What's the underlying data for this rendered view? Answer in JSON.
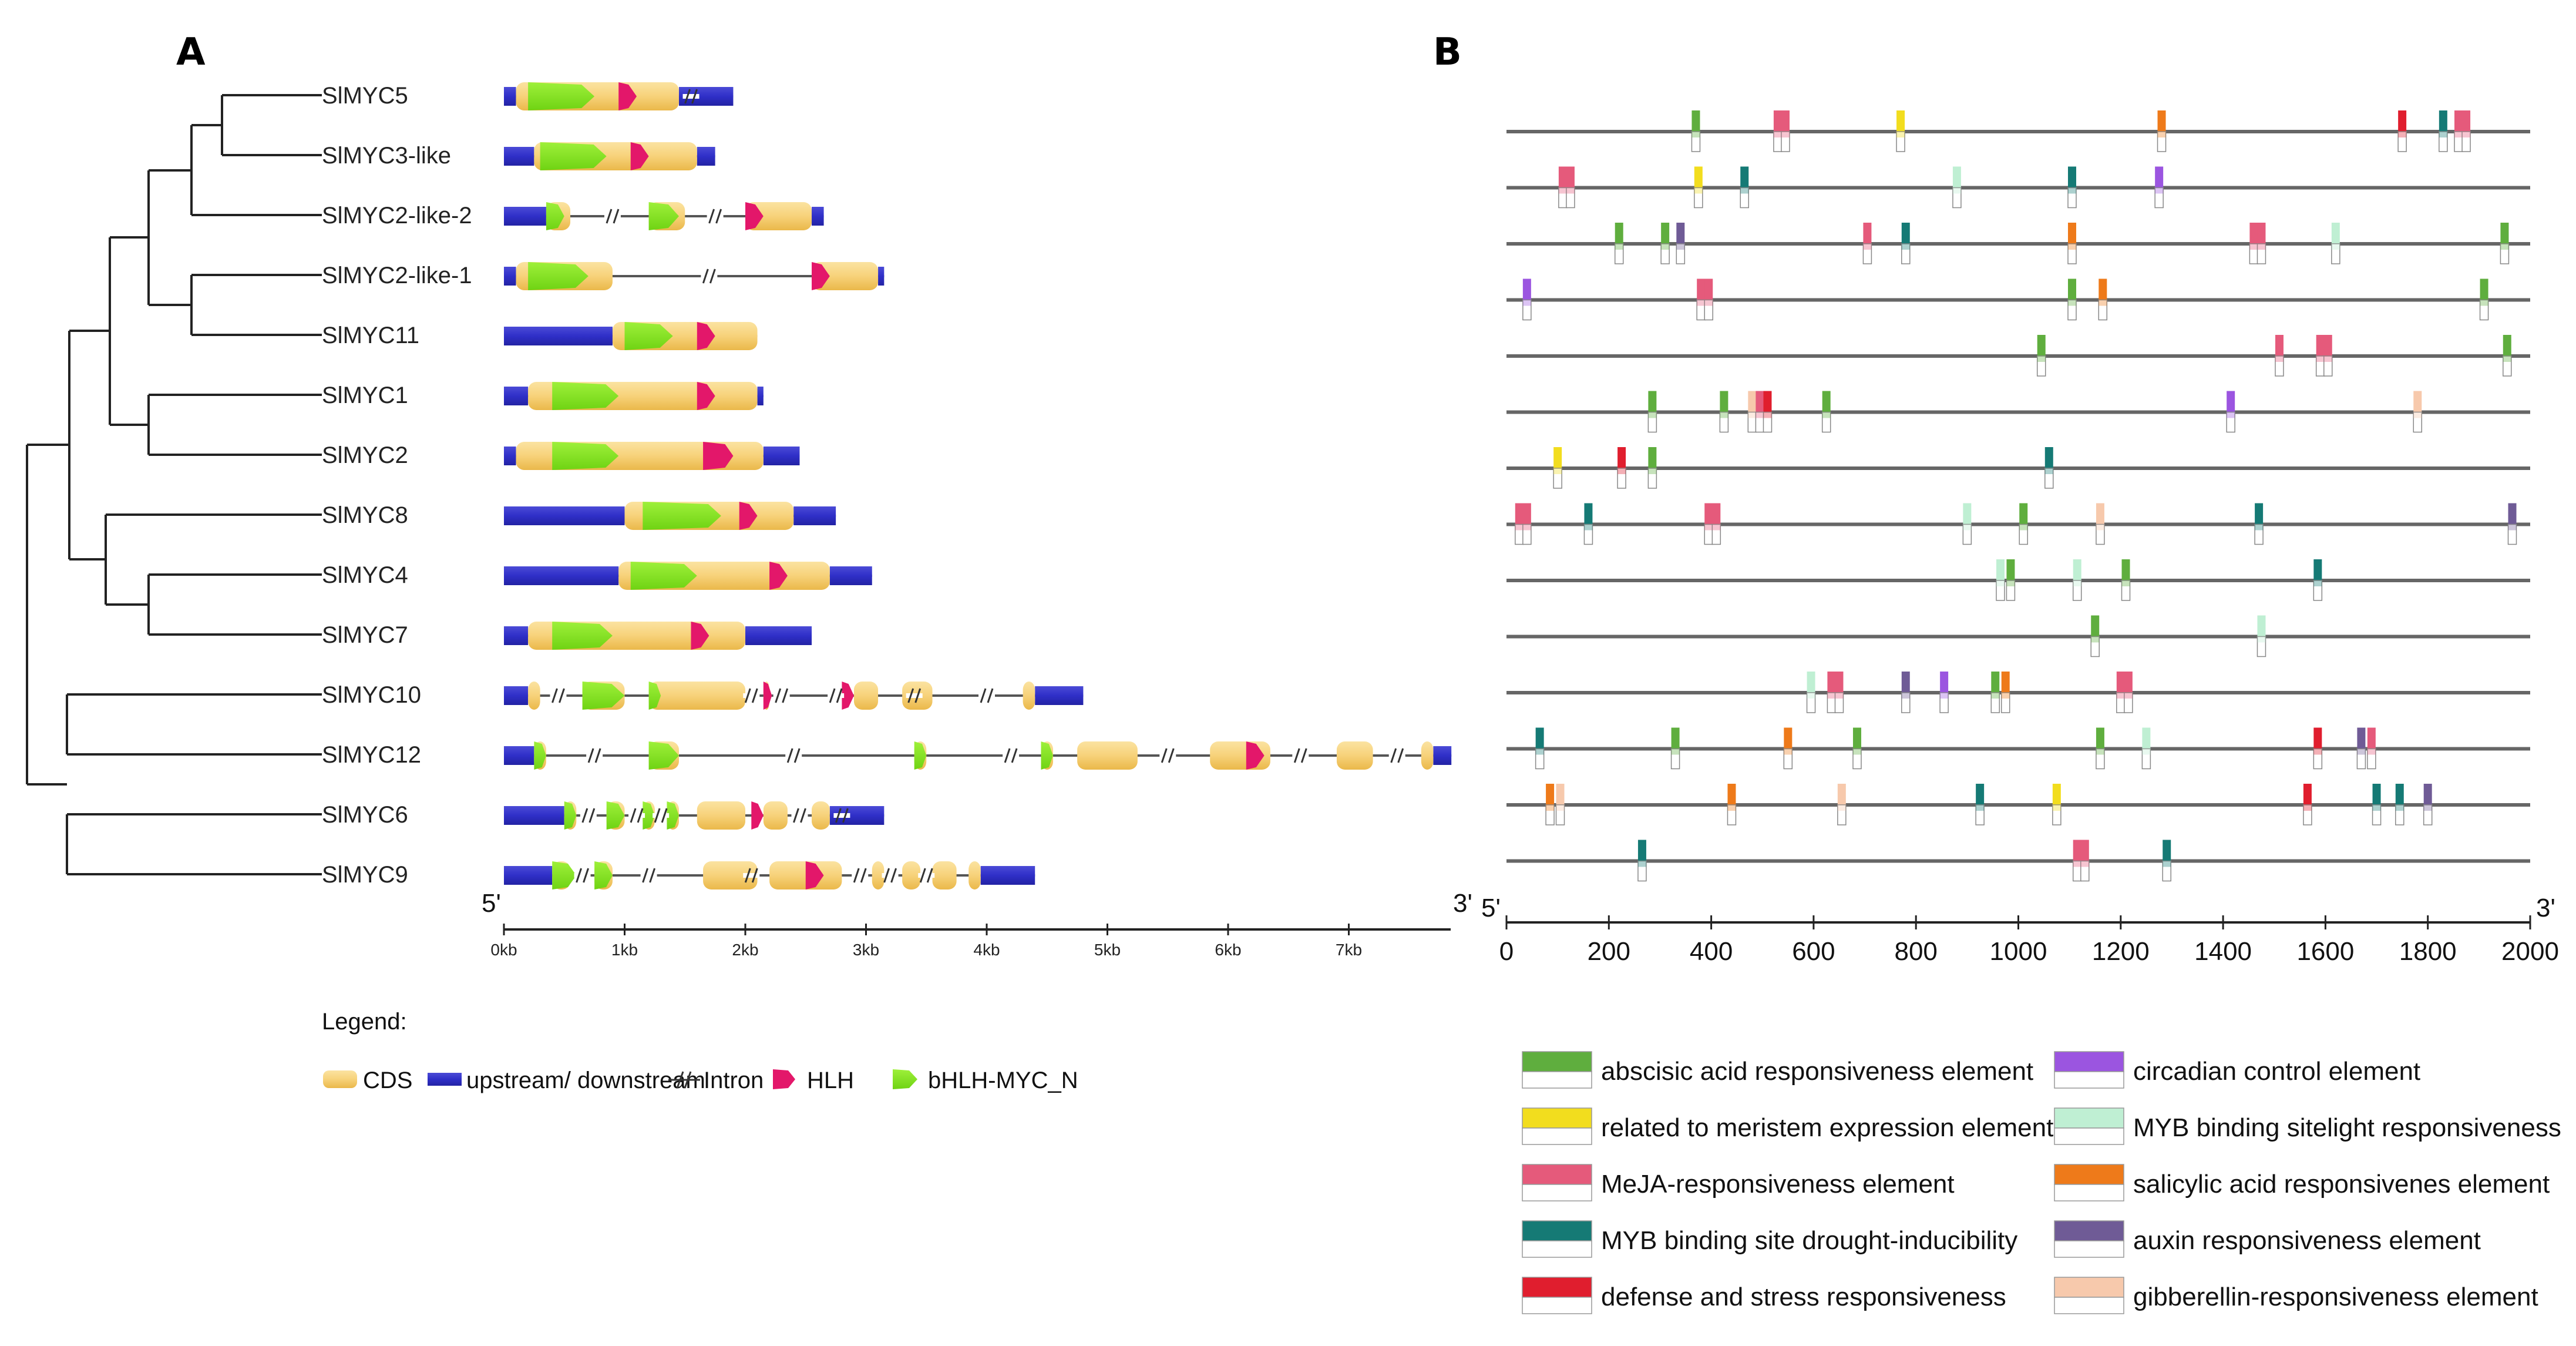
{
  "panel_a": {
    "label": "A",
    "genes": [
      "SlMYC5",
      "SlMYC3-like",
      "SlMYC2-like-2",
      "SlMYC2-like-1",
      "SlMYC11",
      "SlMYC1",
      "SlMYC2",
      "SlMYC8",
      "SlMYC4",
      "SlMYC7",
      "SlMYC10",
      "SlMYC12",
      "SlMYC6",
      "SlMYC9"
    ],
    "axis": {
      "five_prime": "5'",
      "three_prime": "3'",
      "ticks": [
        "0kb",
        "1kb",
        "2kb",
        "3kb",
        "4kb",
        "5kb",
        "6kb",
        "7kb"
      ],
      "tick_values_kb": [
        0,
        1,
        2,
        3,
        4,
        5,
        6,
        7
      ],
      "max_kb": 7.85
    },
    "gene_structures": [
      {
        "gene": "SlMYC5",
        "total_kb": 1.9,
        "cds": [
          [
            0.1,
            1.45
          ]
        ],
        "introns_kb": [
          1.55
        ],
        "bhlh_myc_n": [
          [
            0.2,
            0.75
          ]
        ],
        "hlh": [
          [
            0.95,
            1.1
          ]
        ]
      },
      {
        "gene": "SlMYC3-like",
        "total_kb": 1.75,
        "cds": [
          [
            0.25,
            1.6
          ]
        ],
        "introns_kb": [],
        "bhlh_myc_n": [
          [
            0.3,
            0.85
          ]
        ],
        "hlh": [
          [
            1.05,
            1.2
          ]
        ]
      },
      {
        "gene": "SlMYC2-like-2",
        "total_kb": 2.65,
        "cds": [
          [
            0.35,
            0.55
          ],
          [
            1.2,
            1.5
          ],
          [
            2.0,
            2.55
          ]
        ],
        "introns_kb": [
          0.9,
          1.75
        ],
        "bhlh_myc_n": [
          [
            0.35,
            0.5
          ],
          [
            1.2,
            1.45
          ]
        ],
        "hlh": [
          [
            2.0,
            2.15
          ]
        ]
      },
      {
        "gene": "SlMYC2-like-1",
        "total_kb": 3.15,
        "cds": [
          [
            0.1,
            0.9
          ],
          [
            2.55,
            3.1
          ]
        ],
        "introns_kb": [
          1.7
        ],
        "bhlh_myc_n": [
          [
            0.2,
            0.7
          ]
        ],
        "hlh": [
          [
            2.55,
            2.7
          ]
        ]
      },
      {
        "gene": "SlMYC11",
        "total_kb": 2.1,
        "cds": [
          [
            0.9,
            2.1
          ]
        ],
        "introns_kb": [],
        "bhlh_myc_n": [
          [
            1.0,
            1.4
          ]
        ],
        "hlh": [
          [
            1.6,
            1.75
          ]
        ]
      },
      {
        "gene": "SlMYC1",
        "total_kb": 2.15,
        "cds": [
          [
            0.2,
            2.1
          ]
        ],
        "introns_kb": [],
        "bhlh_myc_n": [
          [
            0.4,
            0.95
          ]
        ],
        "hlh": [
          [
            1.6,
            1.75
          ]
        ]
      },
      {
        "gene": "SlMYC2",
        "total_kb": 2.45,
        "cds": [
          [
            0.1,
            2.15
          ]
        ],
        "introns_kb": [],
        "bhlh_myc_n": [
          [
            0.4,
            0.95
          ]
        ],
        "hlh": [
          [
            1.65,
            1.9
          ]
        ]
      },
      {
        "gene": "SlMYC8",
        "total_kb": 2.75,
        "cds": [
          [
            1.0,
            2.4
          ]
        ],
        "introns_kb": [],
        "bhlh_myc_n": [
          [
            1.15,
            1.8
          ]
        ],
        "hlh": [
          [
            1.95,
            2.1
          ]
        ]
      },
      {
        "gene": "SlMYC4",
        "total_kb": 3.05,
        "cds": [
          [
            0.95,
            2.7
          ]
        ],
        "introns_kb": [],
        "bhlh_myc_n": [
          [
            1.05,
            1.6
          ]
        ],
        "hlh": [
          [
            2.2,
            2.35
          ]
        ]
      },
      {
        "gene": "SlMYC7",
        "total_kb": 2.55,
        "cds": [
          [
            0.2,
            2.0
          ]
        ],
        "introns_kb": [],
        "bhlh_myc_n": [
          [
            0.4,
            0.9
          ]
        ],
        "hlh": [
          [
            1.55,
            1.7
          ]
        ]
      },
      {
        "gene": "SlMYC10",
        "total_kb": 4.8,
        "cds": [
          [
            0.2,
            0.3
          ],
          [
            0.65,
            1.0
          ],
          [
            1.2,
            2.0
          ],
          [
            2.15,
            2.2
          ],
          [
            2.9,
            3.1
          ],
          [
            3.3,
            3.55
          ],
          [
            4.3,
            4.4
          ]
        ],
        "introns_kb": [
          0.45,
          2.05,
          2.3,
          2.75,
          3.4,
          4.0
        ],
        "bhlh_myc_n": [
          [
            0.65,
            1.0
          ],
          [
            1.2,
            1.3
          ]
        ],
        "hlh": [
          [
            2.15,
            2.22
          ],
          [
            2.8,
            2.9
          ]
        ]
      },
      {
        "gene": "SlMYC12",
        "total_kb": 7.85,
        "cds": [
          [
            0.25,
            0.35
          ],
          [
            1.2,
            1.45
          ],
          [
            3.4,
            3.5
          ],
          [
            4.45,
            4.55
          ],
          [
            4.75,
            5.25
          ],
          [
            5.85,
            6.35
          ],
          [
            6.9,
            7.2
          ],
          [
            7.6,
            7.7
          ]
        ],
        "introns_kb": [
          0.75,
          2.4,
          4.2,
          5.5,
          6.6,
          7.4
        ],
        "bhlh_myc_n": [
          [
            0.25,
            0.35
          ],
          [
            1.2,
            1.45
          ],
          [
            3.4,
            3.5
          ],
          [
            4.45,
            4.55
          ]
        ],
        "hlh": [
          [
            6.15,
            6.3
          ]
        ]
      },
      {
        "gene": "SlMYC6",
        "total_kb": 3.15,
        "cds": [
          [
            0.5,
            0.6
          ],
          [
            0.85,
            1.0
          ],
          [
            1.15,
            1.25
          ],
          [
            1.35,
            1.45
          ],
          [
            1.6,
            2.0
          ],
          [
            2.15,
            2.35
          ],
          [
            2.55,
            2.7
          ]
        ],
        "introns_kb": [
          0.7,
          1.1,
          1.3,
          2.45,
          2.8
        ],
        "bhlh_myc_n": [
          [
            0.5,
            0.6
          ],
          [
            0.85,
            1.0
          ],
          [
            1.15,
            1.25
          ],
          [
            1.35,
            1.45
          ]
        ],
        "hlh": [
          [
            2.05,
            2.15
          ]
        ]
      },
      {
        "gene": "SlMYC9",
        "total_kb": 4.4,
        "cds": [
          [
            0.4,
            0.55
          ],
          [
            0.75,
            0.9
          ],
          [
            1.65,
            2.1
          ],
          [
            2.2,
            2.8
          ],
          [
            3.05,
            3.15
          ],
          [
            3.3,
            3.45
          ],
          [
            3.55,
            3.75
          ],
          [
            3.85,
            3.95
          ]
        ],
        "introns_kb": [
          0.65,
          1.2,
          2.05,
          2.95,
          3.2,
          3.5
        ],
        "bhlh_myc_n": [
          [
            0.4,
            0.6
          ],
          [
            0.75,
            0.9
          ]
        ],
        "hlh": [
          [
            2.5,
            2.65
          ]
        ]
      }
    ],
    "legend": {
      "title": "Legend:",
      "cds": "CDS",
      "updown": "upstream/ downstream",
      "intron": "Intron",
      "hlh": "HLH",
      "bhlh": "bHLH-MYC_N"
    }
  },
  "panel_b": {
    "label": "B",
    "axis": {
      "five_prime": "5'",
      "three_prime": "3'",
      "ticks": [
        "0",
        "200",
        "400",
        "600",
        "800",
        "1000",
        "1200",
        "1400",
        "1600",
        "1800",
        "2000"
      ],
      "tick_values": [
        0,
        200,
        400,
        600,
        800,
        1000,
        1200,
        1400,
        1600,
        1800,
        2000
      ],
      "max": 2000
    },
    "element_types": {
      "aba": {
        "label": "abscisic acid responsiveness element",
        "color": "#5fae3e"
      },
      "mer": {
        "label": "related to meristem expression element",
        "color": "#f2dd1e"
      },
      "meja": {
        "label": "MeJA-responsiveness element",
        "color": "#e55a7b"
      },
      "myb_drought": {
        "label": "MYB binding site drought-inducibility",
        "color": "#157a75"
      },
      "defense": {
        "label": "defense and stress responsiveness",
        "color": "#e01e2e"
      },
      "circ": {
        "label": "circadian control element",
        "color": "#9b55e0"
      },
      "myb_light": {
        "label": "MYB binding sitelight responsiveness",
        "color": "#bfefd3"
      },
      "sal": {
        "label": "salicylic acid responsivenes element",
        "color": "#ee7a1a"
      },
      "aux": {
        "label": "auxin responsiveness element",
        "color": "#6f5b96"
      },
      "gib": {
        "label": "gibberellin-responsiveness element",
        "color": "#f7c9ac"
      }
    },
    "legend_order_left": [
      "aba",
      "mer",
      "meja",
      "myb_drought",
      "defense"
    ],
    "legend_order_right": [
      "circ",
      "myb_light",
      "sal",
      "aux",
      "gib"
    ],
    "rows": [
      [
        {
          "pos": 370,
          "type": "aba"
        },
        {
          "pos": 530,
          "type": "meja"
        },
        {
          "pos": 545,
          "type": "meja"
        },
        {
          "pos": 770,
          "type": "mer"
        },
        {
          "pos": 1280,
          "type": "sal"
        },
        {
          "pos": 1750,
          "type": "defense"
        },
        {
          "pos": 1830,
          "type": "myb_drought"
        },
        {
          "pos": 1860,
          "type": "meja"
        },
        {
          "pos": 1875,
          "type": "meja"
        }
      ],
      [
        {
          "pos": 110,
          "type": "meja"
        },
        {
          "pos": 125,
          "type": "meja"
        },
        {
          "pos": 375,
          "type": "mer"
        },
        {
          "pos": 465,
          "type": "myb_drought"
        },
        {
          "pos": 880,
          "type": "myb_light"
        },
        {
          "pos": 1105,
          "type": "myb_drought"
        },
        {
          "pos": 1275,
          "type": "circ"
        }
      ],
      [
        {
          "pos": 220,
          "type": "aba"
        },
        {
          "pos": 310,
          "type": "aba"
        },
        {
          "pos": 340,
          "type": "aux"
        },
        {
          "pos": 705,
          "type": "meja"
        },
        {
          "pos": 780,
          "type": "myb_drought"
        },
        {
          "pos": 1105,
          "type": "sal"
        },
        {
          "pos": 1460,
          "type": "meja"
        },
        {
          "pos": 1475,
          "type": "meja"
        },
        {
          "pos": 1620,
          "type": "myb_light"
        },
        {
          "pos": 1950,
          "type": "aba"
        }
      ],
      [
        {
          "pos": 40,
          "type": "circ"
        },
        {
          "pos": 380,
          "type": "meja"
        },
        {
          "pos": 395,
          "type": "meja"
        },
        {
          "pos": 1105,
          "type": "aba"
        },
        {
          "pos": 1165,
          "type": "sal"
        },
        {
          "pos": 1910,
          "type": "aba"
        }
      ],
      [
        {
          "pos": 1045,
          "type": "aba"
        },
        {
          "pos": 1510,
          "type": "meja"
        },
        {
          "pos": 1590,
          "type": "meja"
        },
        {
          "pos": 1605,
          "type": "meja"
        },
        {
          "pos": 1955,
          "type": "aba"
        }
      ],
      [
        {
          "pos": 285,
          "type": "aba"
        },
        {
          "pos": 425,
          "type": "aba"
        },
        {
          "pos": 480,
          "type": "gib"
        },
        {
          "pos": 495,
          "type": "meja"
        },
        {
          "pos": 510,
          "type": "defense"
        },
        {
          "pos": 625,
          "type": "aba"
        },
        {
          "pos": 1415,
          "type": "circ"
        },
        {
          "pos": 1780,
          "type": "gib"
        }
      ],
      [
        {
          "pos": 100,
          "type": "mer"
        },
        {
          "pos": 225,
          "type": "defense"
        },
        {
          "pos": 285,
          "type": "aba"
        },
        {
          "pos": 1060,
          "type": "myb_drought"
        }
      ],
      [
        {
          "pos": 25,
          "type": "meja"
        },
        {
          "pos": 40,
          "type": "meja"
        },
        {
          "pos": 160,
          "type": "myb_drought"
        },
        {
          "pos": 395,
          "type": "meja"
        },
        {
          "pos": 410,
          "type": "meja"
        },
        {
          "pos": 900,
          "type": "myb_light"
        },
        {
          "pos": 1010,
          "type": "aba"
        },
        {
          "pos": 1160,
          "type": "gib"
        },
        {
          "pos": 1470,
          "type": "myb_drought"
        },
        {
          "pos": 1965,
          "type": "aux"
        }
      ],
      [
        {
          "pos": 965,
          "type": "myb_light"
        },
        {
          "pos": 985,
          "type": "aba"
        },
        {
          "pos": 1115,
          "type": "myb_light"
        },
        {
          "pos": 1210,
          "type": "aba"
        },
        {
          "pos": 1585,
          "type": "myb_drought"
        }
      ],
      [
        {
          "pos": 1150,
          "type": "aba"
        },
        {
          "pos": 1475,
          "type": "myb_light"
        }
      ],
      [
        {
          "pos": 595,
          "type": "myb_light"
        },
        {
          "pos": 635,
          "type": "meja"
        },
        {
          "pos": 650,
          "type": "meja"
        },
        {
          "pos": 780,
          "type": "aux"
        },
        {
          "pos": 855,
          "type": "circ"
        },
        {
          "pos": 955,
          "type": "aba"
        },
        {
          "pos": 975,
          "type": "sal"
        },
        {
          "pos": 1200,
          "type": "meja"
        },
        {
          "pos": 1215,
          "type": "meja"
        }
      ],
      [
        {
          "pos": 65,
          "type": "myb_drought"
        },
        {
          "pos": 330,
          "type": "aba"
        },
        {
          "pos": 550,
          "type": "sal"
        },
        {
          "pos": 685,
          "type": "aba"
        },
        {
          "pos": 1160,
          "type": "aba"
        },
        {
          "pos": 1250,
          "type": "myb_light"
        },
        {
          "pos": 1585,
          "type": "defense"
        },
        {
          "pos": 1670,
          "type": "aux"
        },
        {
          "pos": 1690,
          "type": "meja"
        }
      ],
      [
        {
          "pos": 85,
          "type": "sal"
        },
        {
          "pos": 105,
          "type": "gib"
        },
        {
          "pos": 440,
          "type": "sal"
        },
        {
          "pos": 655,
          "type": "gib"
        },
        {
          "pos": 925,
          "type": "myb_drought"
        },
        {
          "pos": 1075,
          "type": "mer"
        },
        {
          "pos": 1565,
          "type": "defense"
        },
        {
          "pos": 1700,
          "type": "myb_drought"
        },
        {
          "pos": 1745,
          "type": "myb_drought"
        },
        {
          "pos": 1800,
          "type": "aux"
        }
      ],
      [
        {
          "pos": 265,
          "type": "myb_drought"
        },
        {
          "pos": 1115,
          "type": "meja"
        },
        {
          "pos": 1130,
          "type": "meja"
        },
        {
          "pos": 1290,
          "type": "myb_drought"
        }
      ]
    ]
  }
}
